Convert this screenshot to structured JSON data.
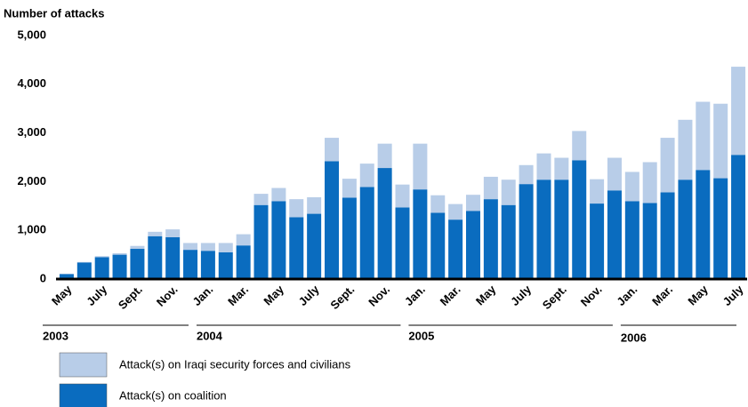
{
  "chart_data": {
    "type": "stacked_bar",
    "y_axis_label": "Number of attacks",
    "categories": [
      "May",
      null,
      "July",
      null,
      "Sept.",
      null,
      "Nov.",
      null,
      "Jan.",
      null,
      "Mar.",
      null,
      "May",
      null,
      "July",
      null,
      "Sept.",
      null,
      "Nov.",
      null,
      "Jan.",
      null,
      "Mar.",
      null,
      "May",
      null,
      "July",
      null,
      "Sept.",
      null,
      "Nov.",
      null,
      "Jan.",
      null,
      "Mar.",
      null,
      "May",
      null,
      "July"
    ],
    "years": [
      {
        "label": "2003",
        "months": 8
      },
      {
        "label": "2004",
        "months": 12
      },
      {
        "label": "2005",
        "months": 12
      },
      {
        "label": "2006",
        "months": 7
      }
    ],
    "series": [
      {
        "name": "Attack(s) on coalition",
        "color": "#0a6cbf",
        "values": [
          100,
          340,
          450,
          500,
          620,
          880,
          860,
          600,
          580,
          550,
          690,
          1520,
          1600,
          1270,
          1340,
          2420,
          1670,
          1890,
          2280,
          1470,
          1840,
          1360,
          1220,
          1400,
          1640,
          1520,
          1950,
          2040,
          2040,
          2440,
          1550,
          1820,
          1600,
          1560,
          1780,
          2040,
          2240,
          2070,
          2550
        ]
      },
      {
        "name": "Attack(s) on Iraqi security forces and civilians",
        "color": "#b8cde8",
        "values": [
          10,
          10,
          20,
          30,
          60,
          90,
          160,
          140,
          160,
          190,
          230,
          230,
          270,
          370,
          340,
          480,
          390,
          480,
          500,
          470,
          940,
          360,
          320,
          330,
          460,
          520,
          390,
          540,
          450,
          600,
          500,
          670,
          600,
          840,
          1120,
          1230,
          1400,
          1530,
          1810
        ]
      }
    ],
    "ylim": [
      0,
      5000
    ],
    "yticks": [
      0,
      {
        "value": 1000,
        "label": "1,000"
      },
      {
        "value": 2000,
        "label": "2,000"
      },
      {
        "value": 3000,
        "label": "3,000"
      },
      {
        "value": 4000,
        "label": "4,000"
      },
      {
        "value": 5000,
        "label": "5,000"
      }
    ],
    "grid": false
  }
}
